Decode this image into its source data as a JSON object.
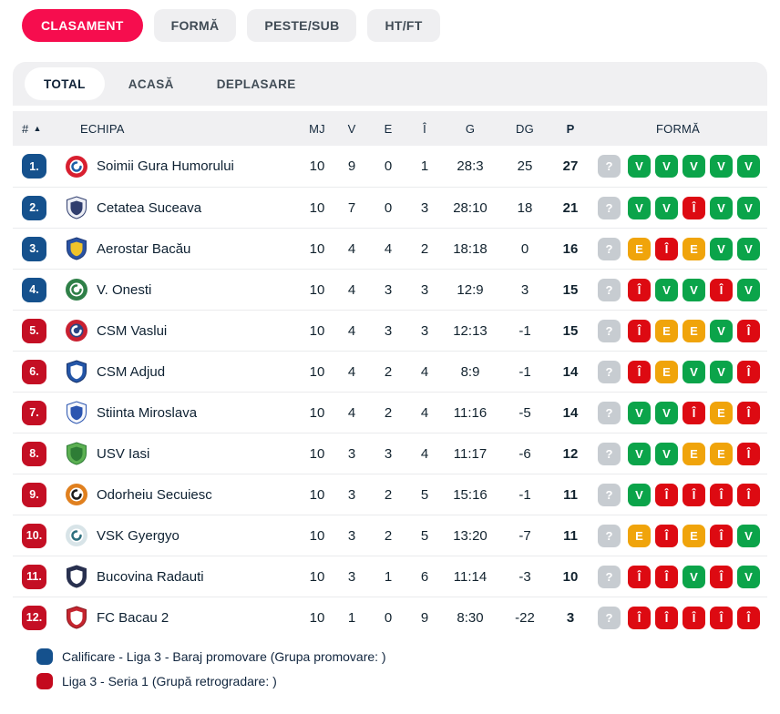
{
  "top_tabs": [
    {
      "label": "CLASAMENT",
      "active": true
    },
    {
      "label": "FORMĂ",
      "active": false
    },
    {
      "label": "PESTE/SUB",
      "active": false
    },
    {
      "label": "HT/FT",
      "active": false
    }
  ],
  "sub_tabs": [
    {
      "label": "TOTAL",
      "active": true
    },
    {
      "label": "ACASĂ",
      "active": false
    },
    {
      "label": "DEPLASARE",
      "active": false
    }
  ],
  "table": {
    "sort_icon": "▲",
    "headers": {
      "rank": "#",
      "team": "ECHIPA",
      "mj": "MJ",
      "v": "V",
      "e": "E",
      "i": "Î",
      "g": "G",
      "dg": "DG",
      "p": "P",
      "form": "FORMĂ"
    },
    "teams": [
      {
        "rank": "1.",
        "rank_color": "blue",
        "name": "Soimii Gura Humorului",
        "logo": {
          "shape": "circle",
          "colors": [
            "#d81f30",
            "#ffffff",
            "#1d5fa8"
          ]
        },
        "mj": 10,
        "v": 9,
        "e": 0,
        "i": 1,
        "g": "28:3",
        "dg": 25,
        "p": 27,
        "form": [
          "?",
          "V",
          "V",
          "V",
          "V",
          "V"
        ]
      },
      {
        "rank": "2.",
        "rank_color": "blue",
        "name": "Cetatea Suceava",
        "logo": {
          "shape": "shield",
          "colors": [
            "#eceef5",
            "#303e6e",
            "#303e6e"
          ]
        },
        "mj": 10,
        "v": 7,
        "e": 0,
        "i": 3,
        "g": "28:10",
        "dg": 18,
        "p": 21,
        "form": [
          "?",
          "V",
          "V",
          "Î",
          "V",
          "V"
        ]
      },
      {
        "rank": "3.",
        "rank_color": "blue",
        "name": "Aerostar Bacău",
        "logo": {
          "shape": "shield",
          "colors": [
            "#2a52a2",
            "#f0c32a",
            "#1d3a77"
          ]
        },
        "mj": 10,
        "v": 4,
        "e": 4,
        "i": 2,
        "g": "18:18",
        "dg": 0,
        "p": 16,
        "form": [
          "?",
          "E",
          "Î",
          "E",
          "V",
          "V"
        ]
      },
      {
        "rank": "4.",
        "rank_color": "blue",
        "name": "V. Onesti",
        "logo": {
          "shape": "circle",
          "colors": [
            "#2f8048",
            "#ffffff",
            "#2f8048"
          ]
        },
        "mj": 10,
        "v": 4,
        "e": 3,
        "i": 3,
        "g": "12:9",
        "dg": 3,
        "p": 15,
        "form": [
          "?",
          "Î",
          "V",
          "V",
          "Î",
          "V"
        ]
      },
      {
        "rank": "5.",
        "rank_color": "red",
        "name": "CSM Vaslui",
        "logo": {
          "shape": "circle",
          "colors": [
            "#c92031",
            "#2b4583",
            "#ffffff"
          ]
        },
        "mj": 10,
        "v": 4,
        "e": 3,
        "i": 3,
        "g": "12:13",
        "dg": -1,
        "p": 15,
        "form": [
          "?",
          "Î",
          "E",
          "E",
          "V",
          "Î"
        ]
      },
      {
        "rank": "6.",
        "rank_color": "red",
        "name": "CSM Adjud",
        "logo": {
          "shape": "shield",
          "colors": [
            "#2456a8",
            "#ffffff",
            "#16336b"
          ]
        },
        "mj": 10,
        "v": 4,
        "e": 2,
        "i": 4,
        "g": "8:9",
        "dg": -1,
        "p": 14,
        "form": [
          "?",
          "Î",
          "E",
          "V",
          "V",
          "Î"
        ]
      },
      {
        "rank": "7.",
        "rank_color": "red",
        "name": "Stiinta Miroslava",
        "logo": {
          "shape": "shield",
          "colors": [
            "#f5f7fb",
            "#2b55b0",
            "#2b55b0"
          ]
        },
        "mj": 10,
        "v": 4,
        "e": 2,
        "i": 4,
        "g": "11:16",
        "dg": -5,
        "p": 14,
        "form": [
          "?",
          "V",
          "V",
          "Î",
          "E",
          "Î"
        ]
      },
      {
        "rank": "8.",
        "rank_color": "red",
        "name": "USV Iasi",
        "logo": {
          "shape": "shield",
          "colors": [
            "#5cb052",
            "#2e7d36",
            "#2e7d36"
          ]
        },
        "mj": 10,
        "v": 3,
        "e": 3,
        "i": 4,
        "g": "11:17",
        "dg": -6,
        "p": 12,
        "form": [
          "?",
          "V",
          "V",
          "E",
          "E",
          "Î"
        ]
      },
      {
        "rank": "9.",
        "rank_color": "red",
        "name": "Odorheiu Secuiesc",
        "logo": {
          "shape": "circle",
          "colors": [
            "#e0801f",
            "#ffffff",
            "#1c1c1c"
          ]
        },
        "mj": 10,
        "v": 3,
        "e": 2,
        "i": 5,
        "g": "15:16",
        "dg": -1,
        "p": 11,
        "form": [
          "?",
          "V",
          "Î",
          "Î",
          "Î",
          "Î"
        ]
      },
      {
        "rank": "10.",
        "rank_color": "red",
        "name": "VSK Gyergyo",
        "logo": {
          "shape": "circle",
          "colors": [
            "#d8e4e8",
            "#ffffff",
            "#2e6f7e"
          ]
        },
        "mj": 10,
        "v": 3,
        "e": 2,
        "i": 5,
        "g": "13:20",
        "dg": -7,
        "p": 11,
        "form": [
          "?",
          "E",
          "Î",
          "E",
          "Î",
          "V"
        ]
      },
      {
        "rank": "11.",
        "rank_color": "red",
        "name": "Bucovina Radauti",
        "logo": {
          "shape": "shield",
          "colors": [
            "#28304f",
            "#ffffff",
            "#28304f"
          ]
        },
        "mj": 10,
        "v": 3,
        "e": 1,
        "i": 6,
        "g": "11:14",
        "dg": -3,
        "p": 10,
        "form": [
          "?",
          "Î",
          "Î",
          "V",
          "Î",
          "V"
        ]
      },
      {
        "rank": "12.",
        "rank_color": "red",
        "name": "FC Bacau 2",
        "logo": {
          "shape": "shield",
          "colors": [
            "#c5252f",
            "#ffffff",
            "#8c1b22"
          ]
        },
        "mj": 10,
        "v": 1,
        "e": 0,
        "i": 9,
        "g": "8:30",
        "dg": -22,
        "p": 3,
        "form": [
          "?",
          "Î",
          "Î",
          "Î",
          "Î",
          "Î"
        ]
      }
    ]
  },
  "rank_colors": {
    "blue": "#15518d",
    "red": "#c40f24"
  },
  "form_colors": {
    "?": "#c7ccd1",
    "V": "#0ba44a",
    "E": "#f0a40b",
    "Î": "#dd0a12"
  },
  "legend": [
    {
      "color": "#15518d",
      "label": "Calificare - Liga 3 - Baraj promovare (Grupa promovare: )"
    },
    {
      "color": "#c40a1e",
      "label": "Liga 3 - Seria 1 (Grupă retrogradare: )"
    }
  ]
}
